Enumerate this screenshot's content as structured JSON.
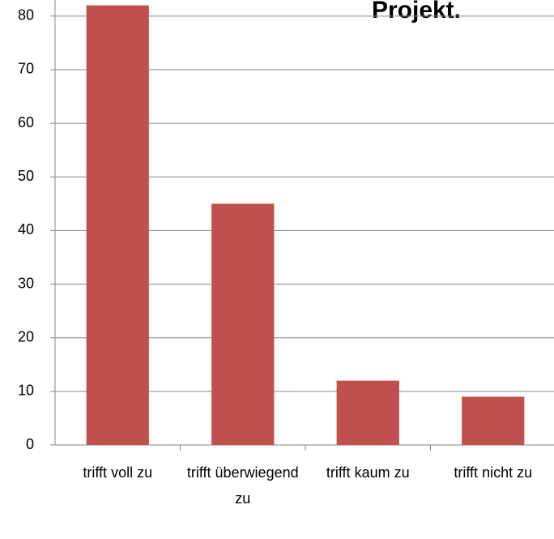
{
  "chart_data": {
    "type": "bar",
    "title": "Projekt.",
    "categories": [
      "trifft voll zu",
      "trifft überwiegend zu",
      "trifft kaum zu",
      "trifft nicht zu"
    ],
    "values": [
      82,
      45,
      12,
      9
    ],
    "color": "#c0504d",
    "ylim": [
      0,
      83
    ],
    "yticks": [
      0,
      10,
      20,
      30,
      40,
      50,
      60,
      70,
      80
    ],
    "grid": true
  }
}
